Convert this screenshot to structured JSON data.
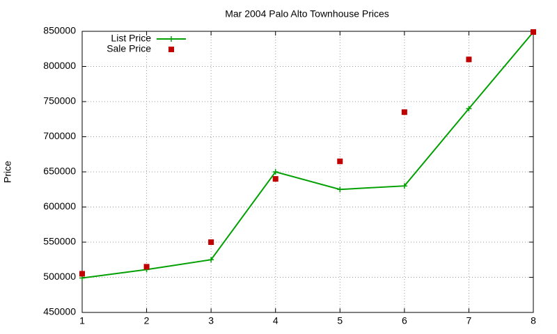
{
  "chart_data": {
    "type": "line",
    "title": "Mar 2004 Palo Alto Townhouse Prices",
    "y_label": "Price",
    "x": [
      1,
      2,
      3,
      4,
      5,
      6,
      7,
      8
    ],
    "series": [
      {
        "name": "List Price",
        "color": "#00a000",
        "style": "linespoints",
        "values": [
          499000,
          511000,
          525000,
          650000,
          625000,
          630000,
          740000,
          849000
        ]
      },
      {
        "name": "Sale Price",
        "color": "#c00000",
        "style": "points",
        "values": [
          505000,
          515000,
          550000,
          640000,
          665000,
          735000,
          810000,
          849000
        ]
      }
    ],
    "xlim": [
      1,
      8
    ],
    "xticks": [
      1,
      2,
      3,
      4,
      5,
      6,
      7,
      8
    ],
    "ylim": [
      450000,
      850000
    ],
    "yticks": [
      450000,
      500000,
      550000,
      600000,
      650000,
      700000,
      750000,
      800000,
      850000
    ],
    "grid": true,
    "legend": "top-left"
  }
}
